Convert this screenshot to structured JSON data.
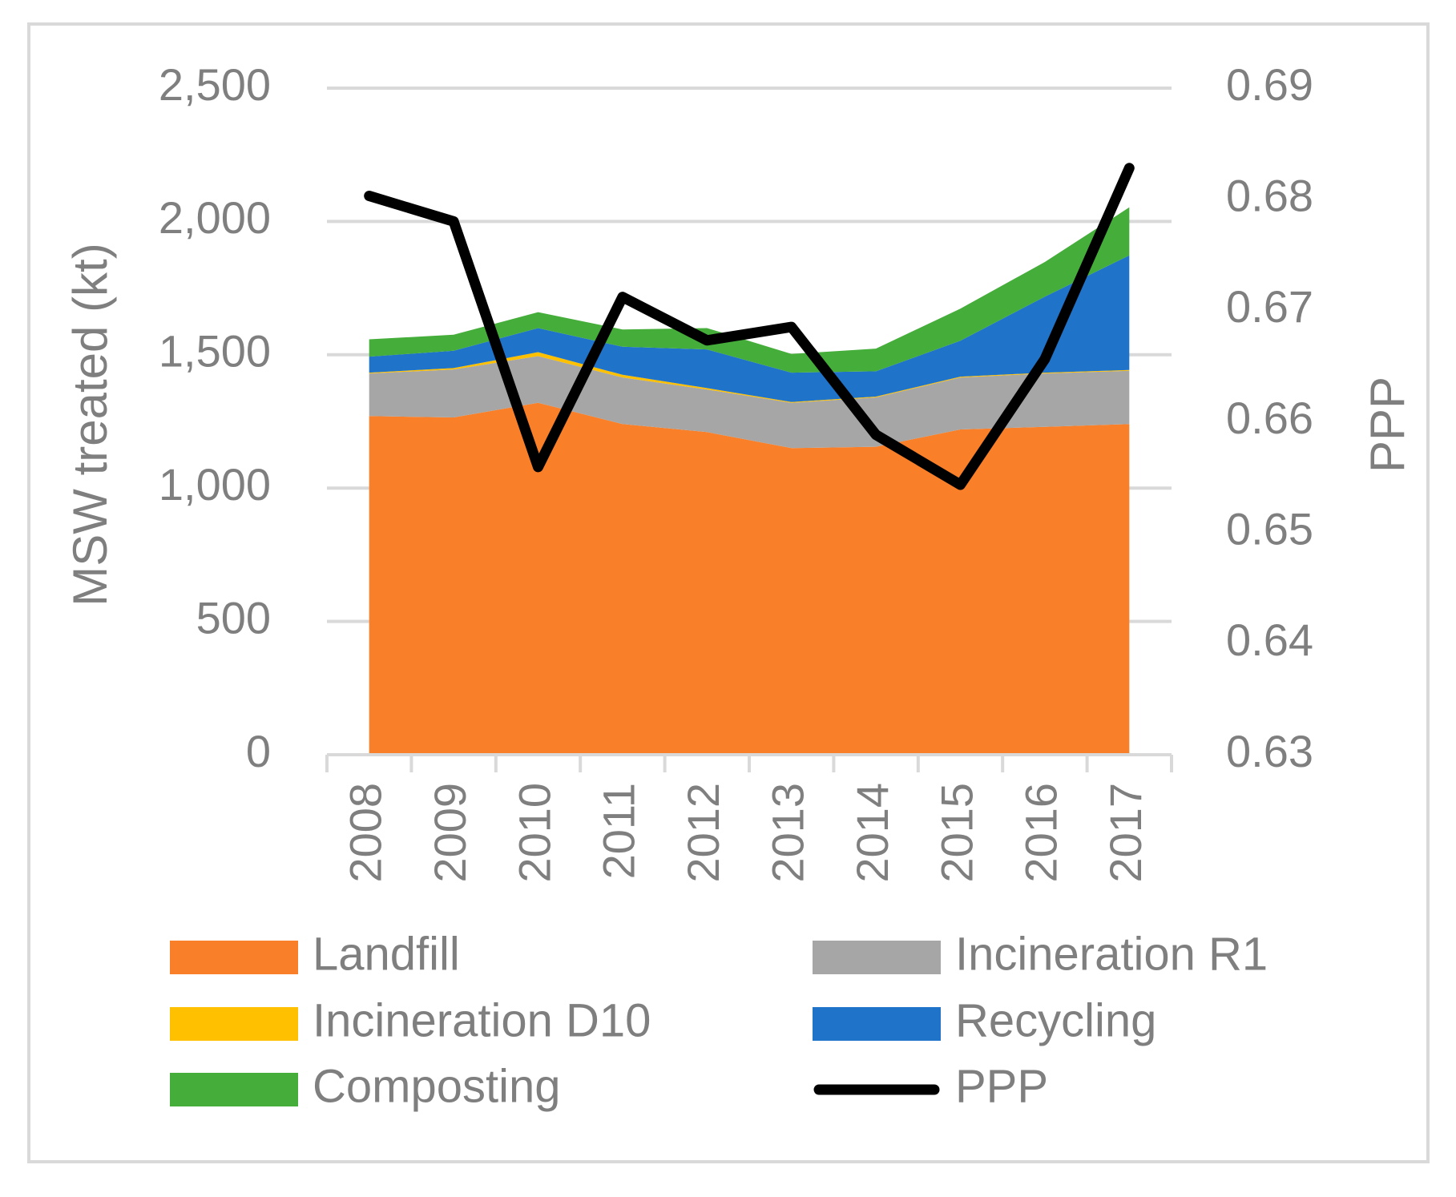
{
  "chart_data": {
    "type": "area",
    "title": "",
    "xlabel": "",
    "ylabel": "MSW treated (kt)",
    "y2label": "PPP",
    "ylim": [
      0,
      2500
    ],
    "y2lim": [
      0.63,
      0.69
    ],
    "yticks": [
      0,
      500,
      1000,
      1500,
      2000,
      2500
    ],
    "yticklabels": [
      "0",
      "500",
      "1,000",
      "1,500",
      "2,000",
      "2,500"
    ],
    "y2ticks": [
      0.63,
      0.64,
      0.65,
      0.66,
      0.67,
      0.68,
      0.69
    ],
    "y2ticklabels": [
      "0.63",
      "0.64",
      "0.65",
      "0.66",
      "0.67",
      "0.68",
      "0.69"
    ],
    "grid": true,
    "legend_position": "bottom",
    "categories": [
      "2008",
      "2009",
      "2010",
      "2011",
      "2012",
      "2013",
      "2014",
      "2015",
      "2016",
      "2017"
    ],
    "series": [
      {
        "name": "Landfill",
        "kind": "stacked-area",
        "axis": "left",
        "color": "#f97f28",
        "values": [
          1270,
          1265,
          1320,
          1240,
          1210,
          1150,
          1155,
          1220,
          1230,
          1240
        ]
      },
      {
        "name": "Incineration R1",
        "kind": "stacked-area",
        "axis": "left",
        "color": "#a6a6a6",
        "values": [
          160,
          180,
          175,
          175,
          160,
          170,
          185,
          195,
          200,
          200
        ]
      },
      {
        "name": "Incineration D10",
        "kind": "stacked-area",
        "axis": "left",
        "color": "#ffc000",
        "values": [
          3,
          5,
          15,
          10,
          5,
          3,
          3,
          3,
          3,
          3
        ]
      },
      {
        "name": "Recycling",
        "kind": "stacked-area",
        "axis": "left",
        "color": "#1f73c8",
        "values": [
          60,
          65,
          90,
          105,
          145,
          110,
          95,
          135,
          285,
          430
        ]
      },
      {
        "name": "Composting",
        "kind": "stacked-area",
        "axis": "left",
        "color": "#45ad3a",
        "values": [
          65,
          60,
          60,
          65,
          80,
          70,
          85,
          120,
          130,
          180
        ]
      },
      {
        "name": "PPP",
        "kind": "line",
        "axis": "right",
        "color": "#000000",
        "values": [
          0.6803,
          0.678,
          0.6559,
          0.6712,
          0.6673,
          0.6685,
          0.6588,
          0.6543,
          0.6656,
          0.6828
        ]
      }
    ]
  }
}
